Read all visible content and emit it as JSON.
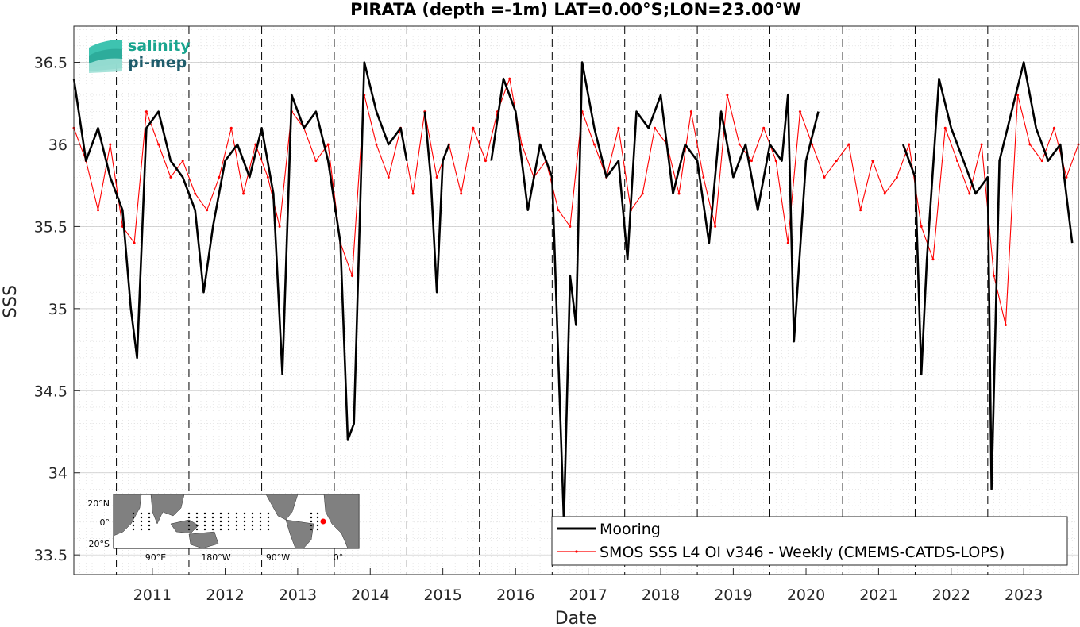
{
  "chart_data": {
    "type": "line",
    "title": "PIRATA (depth =-1m) LAT=0.00°S;LON=23.00°W",
    "xlabel": "Date",
    "ylabel": "SSS",
    "xlim": [
      "2010-06-01",
      "2024-04-01"
    ],
    "ylim": [
      33.38,
      36.72
    ],
    "x_ticks": [
      "2011",
      "2012",
      "2013",
      "2014",
      "2015",
      "2016",
      "2017",
      "2018",
      "2019",
      "2020",
      "2021",
      "2022",
      "2023"
    ],
    "y_ticks": [
      "33.5",
      "34",
      "34.5",
      "35",
      "35.5",
      "36",
      "36.5"
    ],
    "grid": true,
    "legend_position": "bottom-right",
    "series": [
      {
        "name": "Mooring",
        "color": "#000000",
        "segments": [
          {
            "x": [
              "2010-06-01",
              "2010-08-01",
              "2010-10-01",
              "2010-12-01",
              "2011-02-01",
              "2011-03-15",
              "2011-04-15",
              "2011-06-01",
              "2011-08-01",
              "2011-10-01",
              "2011-12-01",
              "2012-02-01",
              "2012-03-15",
              "2012-05-01",
              "2012-07-01",
              "2012-09-01",
              "2012-11-01",
              "2013-01-01",
              "2013-03-01",
              "2013-04-15",
              "2013-06-01",
              "2013-08-01",
              "2013-10-01",
              "2013-12-01",
              "2014-02-01",
              "2014-03-10",
              "2014-04-10",
              "2014-06-01",
              "2014-08-01",
              "2014-10-01",
              "2014-12-01",
              "2015-01-01"
            ],
            "y": [
              36.4,
              35.9,
              36.1,
              35.8,
              35.6,
              35.0,
              34.7,
              36.1,
              36.2,
              35.9,
              35.8,
              35.6,
              35.1,
              35.5,
              35.9,
              36.0,
              35.8,
              36.1,
              35.7,
              34.6,
              36.3,
              36.1,
              36.2,
              35.9,
              35.4,
              34.2,
              34.3,
              36.5,
              36.2,
              36.0,
              36.1,
              35.9
            ]
          },
          {
            "x": [
              "2015-04-01",
              "2015-05-01",
              "2015-06-01",
              "2015-07-01",
              "2015-08-01"
            ],
            "y": [
              36.2,
              35.8,
              35.1,
              35.9,
              36.0
            ]
          },
          {
            "x": [
              "2016-03-01",
              "2016-05-01",
              "2016-07-01",
              "2016-09-01",
              "2016-11-01",
              "2017-01-01",
              "2017-03-01",
              "2017-04-01",
              "2017-05-01",
              "2017-06-01",
              "2017-08-01",
              "2017-10-01",
              "2017-12-01",
              "2018-01-15",
              "2018-03-01",
              "2018-05-01",
              "2018-07-01",
              "2018-09-01",
              "2018-11-01",
              "2019-01-01",
              "2019-03-01",
              "2019-05-01",
              "2019-07-01",
              "2019-09-01",
              "2019-11-01",
              "2020-01-01",
              "2020-03-01",
              "2020-04-01",
              "2020-05-01",
              "2020-07-01",
              "2020-09-01"
            ],
            "y": [
              35.9,
              36.4,
              36.2,
              35.6,
              36.0,
              35.8,
              33.7,
              35.2,
              34.9,
              36.5,
              36.1,
              35.8,
              35.9,
              35.3,
              36.2,
              36.1,
              36.3,
              35.7,
              36.0,
              35.9,
              35.4,
              36.2,
              35.8,
              36.0,
              35.6,
              36.0,
              35.9,
              36.3,
              34.8,
              35.9,
              36.2
            ]
          },
          {
            "x": [
              "2021-11-01",
              "2022-01-01",
              "2022-02-01",
              "2022-03-01",
              "2022-05-01",
              "2022-07-01",
              "2022-09-01",
              "2022-11-01",
              "2023-01-01",
              "2023-01-20",
              "2023-03-01",
              "2023-05-01",
              "2023-07-01",
              "2023-09-01",
              "2023-11-01",
              "2024-01-01",
              "2024-03-01"
            ],
            "y": [
              36.0,
              35.8,
              34.6,
              35.3,
              36.4,
              36.1,
              35.9,
              35.7,
              35.8,
              33.9,
              35.9,
              36.2,
              36.5,
              36.1,
              35.9,
              36.0,
              35.4
            ]
          }
        ]
      },
      {
        "name": "SMOS SSS L4 OI v346 - Weekly (CMEMS-CATDS-LOPS)",
        "color": "#ff0000",
        "x": [
          "2010-06-01",
          "2010-08-01",
          "2010-10-01",
          "2010-12-01",
          "2011-02-01",
          "2011-04-01",
          "2011-06-01",
          "2011-08-01",
          "2011-10-01",
          "2011-12-01",
          "2012-02-01",
          "2012-04-01",
          "2012-06-01",
          "2012-08-01",
          "2012-10-01",
          "2012-12-01",
          "2013-02-01",
          "2013-04-01",
          "2013-06-01",
          "2013-08-01",
          "2013-10-01",
          "2013-12-01",
          "2014-02-01",
          "2014-04-01",
          "2014-06-01",
          "2014-08-01",
          "2014-10-01",
          "2014-12-01",
          "2015-02-01",
          "2015-04-01",
          "2015-06-01",
          "2015-08-01",
          "2015-10-01",
          "2015-12-01",
          "2016-02-01",
          "2016-04-01",
          "2016-06-01",
          "2016-08-01",
          "2016-10-01",
          "2016-12-01",
          "2017-02-01",
          "2017-04-01",
          "2017-06-01",
          "2017-08-01",
          "2017-10-01",
          "2017-12-01",
          "2018-02-01",
          "2018-04-01",
          "2018-06-01",
          "2018-08-01",
          "2018-10-01",
          "2018-12-01",
          "2019-02-01",
          "2019-04-01",
          "2019-06-01",
          "2019-08-01",
          "2019-10-01",
          "2019-12-01",
          "2020-02-01",
          "2020-04-01",
          "2020-06-01",
          "2020-08-01",
          "2020-10-01",
          "2020-12-01",
          "2021-02-01",
          "2021-04-01",
          "2021-06-01",
          "2021-08-01",
          "2021-10-01",
          "2021-12-01",
          "2022-02-01",
          "2022-04-01",
          "2022-06-01",
          "2022-08-01",
          "2022-10-01",
          "2022-12-01",
          "2023-02-01",
          "2023-04-01",
          "2023-06-01",
          "2023-08-01",
          "2023-10-01",
          "2023-12-01",
          "2024-02-01",
          "2024-04-01"
        ],
        "y": [
          36.1,
          35.9,
          35.6,
          36.0,
          35.5,
          35.4,
          36.2,
          36.0,
          35.8,
          35.9,
          35.7,
          35.6,
          35.8,
          36.1,
          35.7,
          36.0,
          35.8,
          35.5,
          36.2,
          36.1,
          35.9,
          36.0,
          35.4,
          35.2,
          36.3,
          36.0,
          35.8,
          36.1,
          35.7,
          36.2,
          35.8,
          36.0,
          35.7,
          36.1,
          35.9,
          36.2,
          36.4,
          36.0,
          35.8,
          35.9,
          35.6,
          35.5,
          36.2,
          36.0,
          35.8,
          36.1,
          35.6,
          35.7,
          36.1,
          36.0,
          35.7,
          36.2,
          35.8,
          35.5,
          36.3,
          36.0,
          35.9,
          36.1,
          35.9,
          35.4,
          36.2,
          36.0,
          35.8,
          35.9,
          36.0,
          35.6,
          35.9,
          35.7,
          35.8,
          36.0,
          35.5,
          35.3,
          36.1,
          35.9,
          35.7,
          36.0,
          35.2,
          34.9,
          36.3,
          36.0,
          35.9,
          36.1,
          35.8,
          36.0
        ]
      }
    ]
  },
  "logo": {
    "line1": "salinity",
    "line2": "pi-mep"
  },
  "inset_map": {
    "y_labels": [
      "20°N",
      "0°",
      "20°S"
    ],
    "x_labels": [
      "90°E",
      "180°W",
      "90°W",
      "0°"
    ]
  }
}
